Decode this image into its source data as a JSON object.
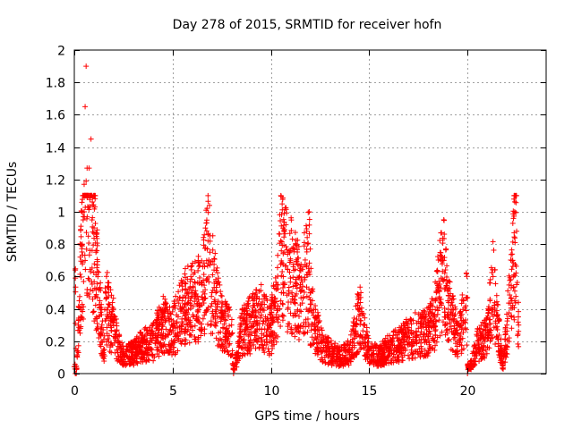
{
  "chart_data": {
    "type": "scatter",
    "title": "Day 278 of 2015, SRMTID for receiver hofn",
    "xlabel": "GPS time / hours",
    "ylabel": "SRMTID / TECUs",
    "xlim": [
      0,
      24
    ],
    "ylim": [
      0,
      2
    ],
    "x_ticks": [
      0,
      5,
      10,
      15,
      20
    ],
    "x_tick_labels": [
      "0",
      "5",
      "10",
      "15",
      "20"
    ],
    "y_ticks": [
      0,
      0.2,
      0.4,
      0.6,
      0.8,
      1,
      1.2,
      1.4,
      1.6,
      1.8,
      2
    ],
    "y_tick_labels": [
      "0",
      "0.2",
      "0.4",
      "0.6",
      "0.8",
      "1",
      "1.2",
      "1.4",
      "1.6",
      "1.8",
      "2"
    ],
    "grid": true,
    "marker": "plus",
    "point_color": "#ff0000",
    "approx_points_per_hour": 140,
    "series": [
      {
        "name": "SRMTID",
        "points": [
          [
            0.05,
            0.0
          ],
          [
            0.1,
            0.0
          ],
          [
            0.05,
            0.64
          ],
          [
            0.2,
            0.3
          ],
          [
            0.25,
            0.45
          ],
          [
            0.3,
            0.72
          ],
          [
            0.4,
            0.8
          ],
          [
            0.45,
            0.95
          ],
          [
            0.5,
            1.0
          ],
          [
            0.5,
            1.17
          ],
          [
            0.55,
            1.65
          ],
          [
            0.6,
            1.9
          ],
          [
            0.6,
            1.19
          ],
          [
            0.65,
            1.27
          ],
          [
            0.75,
            1.27
          ],
          [
            0.85,
            1.45
          ],
          [
            0.9,
            0.95
          ],
          [
            1.0,
            0.9
          ],
          [
            1.05,
            1.03
          ],
          [
            1.1,
            0.75
          ],
          [
            1.2,
            0.6
          ],
          [
            1.3,
            0.45
          ],
          [
            1.4,
            0.3
          ],
          [
            1.5,
            0.15
          ],
          [
            1.6,
            0.5
          ],
          [
            1.8,
            0.38
          ],
          [
            2.0,
            0.35
          ],
          [
            2.2,
            0.2
          ],
          [
            2.5,
            0.12
          ],
          [
            3.0,
            0.15
          ],
          [
            3.5,
            0.2
          ],
          [
            4.0,
            0.22
          ],
          [
            4.5,
            0.35
          ],
          [
            5.0,
            0.3
          ],
          [
            5.5,
            0.45
          ],
          [
            6.0,
            0.5
          ],
          [
            6.5,
            0.55
          ],
          [
            6.8,
            0.82
          ],
          [
            6.9,
            0.75
          ],
          [
            7.2,
            0.5
          ],
          [
            7.5,
            0.35
          ],
          [
            8.0,
            0.3
          ],
          [
            8.1,
            0.0
          ],
          [
            8.5,
            0.3
          ],
          [
            9.0,
            0.35
          ],
          [
            9.5,
            0.4
          ],
          [
            10.0,
            0.3
          ],
          [
            10.3,
            0.55
          ],
          [
            10.5,
            0.82
          ],
          [
            10.7,
            0.75
          ],
          [
            11.0,
            0.7
          ],
          [
            11.5,
            0.55
          ],
          [
            12.0,
            0.77
          ],
          [
            12.0,
            0.5
          ],
          [
            12.3,
            0.3
          ],
          [
            12.6,
            0.2
          ],
          [
            13.0,
            0.15
          ],
          [
            13.5,
            0.12
          ],
          [
            14.0,
            0.15
          ],
          [
            14.5,
            0.4
          ],
          [
            15.0,
            0.15
          ],
          [
            15.5,
            0.12
          ],
          [
            16.0,
            0.18
          ],
          [
            16.5,
            0.2
          ],
          [
            17.0,
            0.25
          ],
          [
            17.5,
            0.28
          ],
          [
            18.0,
            0.3
          ],
          [
            18.3,
            0.35
          ],
          [
            18.7,
            0.72
          ],
          [
            18.8,
            0.7
          ],
          [
            19.0,
            0.45
          ],
          [
            19.5,
            0.25
          ],
          [
            20.0,
            0.47
          ],
          [
            20.0,
            0.0
          ],
          [
            20.5,
            0.2
          ],
          [
            21.0,
            0.25
          ],
          [
            21.3,
            0.6
          ],
          [
            21.8,
            0.05
          ],
          [
            22.0,
            0.3
          ],
          [
            22.3,
            0.7
          ],
          [
            22.4,
            1.0
          ],
          [
            22.5,
            0.88
          ],
          [
            22.5,
            0.55
          ],
          [
            22.6,
            0.3
          ]
        ]
      }
    ]
  }
}
